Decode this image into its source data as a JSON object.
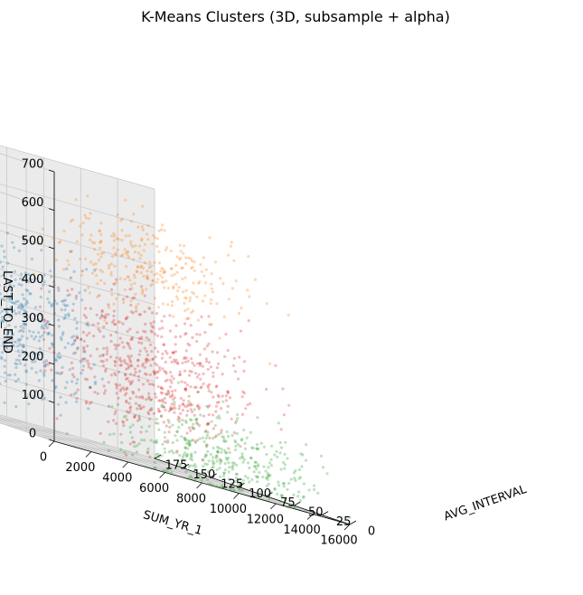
{
  "chart_data": {
    "type": "scatter",
    "projection": "3d",
    "title": "K-Means Clusters (3D, subsample + alpha)",
    "axes": {
      "x": {
        "label": "SUM_YR_1",
        "range": [
          0,
          16000
        ],
        "ticks": [
          0,
          2000,
          4000,
          6000,
          8000,
          10000,
          12000,
          14000,
          16000
        ]
      },
      "y": {
        "label": "AVG_INTERVAL",
        "range": [
          0,
          175
        ],
        "ticks": [
          0,
          25,
          50,
          75,
          100,
          125,
          150,
          175
        ]
      },
      "z": {
        "label": "LAST_TO_END",
        "range": [
          0,
          700
        ],
        "ticks": [
          0,
          100,
          200,
          300,
          400,
          500,
          600,
          700
        ]
      }
    },
    "grid": true,
    "alpha": 0.3,
    "series": [
      {
        "color": "#1f77b4",
        "approx_points": 1400,
        "region": {
          "SUM_YR_1": [
            0,
            8000
          ],
          "AVG_INTERVAL": [
            0,
            175
          ],
          "LAST_TO_END": [
            0,
            600
          ]
        },
        "center": {
          "SUM_YR_1": 3500,
          "AVG_INTERVAL": 90,
          "LAST_TO_END": 280
        }
      },
      {
        "color": "#ff7f0e",
        "approx_points": 900,
        "region": {
          "SUM_YR_1": [
            0,
            16000
          ],
          "AVG_INTERVAL": [
            0,
            60
          ],
          "LAST_TO_END": [
            300,
            700
          ]
        },
        "center": {
          "SUM_YR_1": 6000,
          "AVG_INTERVAL": 10,
          "LAST_TO_END": 520
        }
      },
      {
        "color": "#2ca02c",
        "approx_points": 1200,
        "region": {
          "SUM_YR_1": [
            0,
            16000
          ],
          "AVG_INTERVAL": [
            0,
            60
          ],
          "LAST_TO_END": [
            0,
            350
          ]
        },
        "center": {
          "SUM_YR_1": 10000,
          "AVG_INTERVAL": 15,
          "LAST_TO_END": 80
        }
      },
      {
        "color": "#d62728",
        "approx_points": 1800,
        "region": {
          "SUM_YR_1": [
            0,
            16000
          ],
          "AVG_INTERVAL": [
            0,
            80
          ],
          "LAST_TO_END": [
            0,
            550
          ]
        },
        "center": {
          "SUM_YR_1": 7000,
          "AVG_INTERVAL": 25,
          "LAST_TO_END": 250
        }
      }
    ]
  }
}
